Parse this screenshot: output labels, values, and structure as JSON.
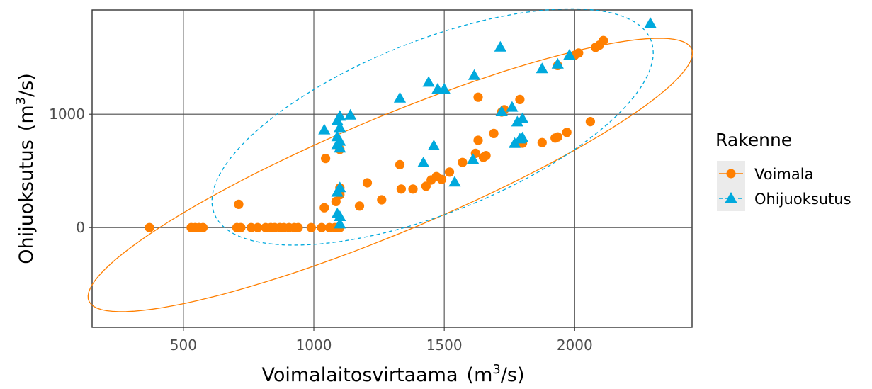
{
  "chart_data": {
    "type": "scatter",
    "xlabel_text": "Voimalaitosvirtaama",
    "ylabel_text": "Ohijuoksutus",
    "unit_base": "(m",
    "unit_sup": "3",
    "unit_tail": "/s)",
    "xlim": [
      150,
      2450
    ],
    "ylim": [
      -880,
      1920
    ],
    "xticks": [
      500,
      1000,
      1500,
      2000
    ],
    "yticks": [
      0,
      1000
    ],
    "xtick_labels": [
      "500",
      "1000",
      "1500",
      "2000"
    ],
    "ytick_labels": [
      "0",
      "1000"
    ],
    "grid": true,
    "legend": {
      "title": "Rakenne",
      "position": "right"
    },
    "series": [
      {
        "name": "Voimala",
        "color": "#ff7f00",
        "marker": "circle",
        "ellipse_style": "solid",
        "points": [
          [
            370,
            0
          ],
          [
            530,
            0
          ],
          [
            545,
            0
          ],
          [
            560,
            0
          ],
          [
            575,
            0
          ],
          [
            705,
            0
          ],
          [
            720,
            0
          ],
          [
            712,
            205
          ],
          [
            760,
            0
          ],
          [
            785,
            0
          ],
          [
            815,
            0
          ],
          [
            835,
            0
          ],
          [
            850,
            0
          ],
          [
            870,
            0
          ],
          [
            885,
            0
          ],
          [
            905,
            0
          ],
          [
            925,
            0
          ],
          [
            940,
            0
          ],
          [
            990,
            0
          ],
          [
            1030,
            0
          ],
          [
            1060,
            0
          ],
          [
            1080,
            0
          ],
          [
            1092,
            0
          ],
          [
            1100,
            0
          ],
          [
            1045,
            610
          ],
          [
            1040,
            175
          ],
          [
            1085,
            230
          ],
          [
            1100,
            690
          ],
          [
            1100,
            320
          ],
          [
            1100,
            350
          ],
          [
            1100,
            290
          ],
          [
            1175,
            190
          ],
          [
            1205,
            395
          ],
          [
            1260,
            245
          ],
          [
            1330,
            555
          ],
          [
            1335,
            340
          ],
          [
            1380,
            340
          ],
          [
            1430,
            365
          ],
          [
            1450,
            420
          ],
          [
            1470,
            450
          ],
          [
            1490,
            425
          ],
          [
            1520,
            490
          ],
          [
            1570,
            575
          ],
          [
            1620,
            655
          ],
          [
            1630,
            1150
          ],
          [
            1630,
            770
          ],
          [
            1650,
            620
          ],
          [
            1660,
            635
          ],
          [
            1690,
            830
          ],
          [
            1720,
            1020
          ],
          [
            1730,
            1040
          ],
          [
            1790,
            1130
          ],
          [
            1800,
            745
          ],
          [
            1875,
            750
          ],
          [
            1925,
            790
          ],
          [
            1935,
            800
          ],
          [
            1970,
            840
          ],
          [
            1935,
            1430
          ],
          [
            2000,
            1520
          ],
          [
            2015,
            1540
          ],
          [
            2060,
            935
          ],
          [
            2080,
            1590
          ],
          [
            2095,
            1610
          ],
          [
            2110,
            1650
          ]
        ]
      },
      {
        "name": "Ohijuoksutus",
        "color": "#00a9dd",
        "marker": "triangle",
        "ellipse_style": "dashed",
        "points": [
          [
            1040,
            860
          ],
          [
            1090,
            940
          ],
          [
            1100,
            980
          ],
          [
            1090,
            800
          ],
          [
            1100,
            760
          ],
          [
            1090,
            730
          ],
          [
            1100,
            700
          ],
          [
            1100,
            880
          ],
          [
            1100,
            350
          ],
          [
            1090,
            310
          ],
          [
            1100,
            95
          ],
          [
            1090,
            120
          ],
          [
            1100,
            30
          ],
          [
            1140,
            990
          ],
          [
            1330,
            1140
          ],
          [
            1420,
            570
          ],
          [
            1440,
            1280
          ],
          [
            1460,
            720
          ],
          [
            1475,
            1220
          ],
          [
            1500,
            1220
          ],
          [
            1540,
            400
          ],
          [
            1610,
            600
          ],
          [
            1615,
            1340
          ],
          [
            1715,
            1590
          ],
          [
            1720,
            1020
          ],
          [
            1760,
            1060
          ],
          [
            1770,
            740
          ],
          [
            1780,
            930
          ],
          [
            1790,
            780
          ],
          [
            1800,
            790
          ],
          [
            1800,
            960
          ],
          [
            1875,
            1400
          ],
          [
            1935,
            1440
          ],
          [
            1980,
            1520
          ],
          [
            2290,
            1800
          ]
        ]
      }
    ]
  }
}
